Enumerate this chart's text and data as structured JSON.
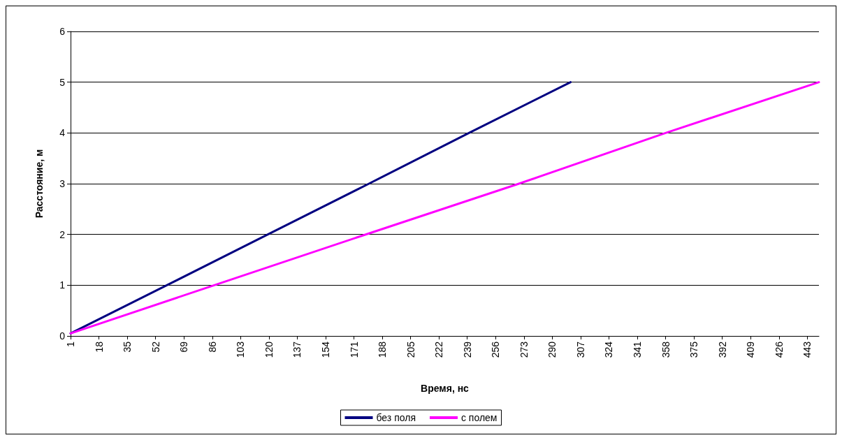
{
  "chart_data": {
    "type": "line",
    "xlabel": "Время, нс",
    "ylabel": "Расстояние, м",
    "xlim": [
      1,
      450
    ],
    "xticks": [
      1,
      18,
      35,
      52,
      69,
      86,
      103,
      120,
      137,
      154,
      171,
      188,
      205,
      222,
      239,
      256,
      273,
      290,
      307,
      324,
      341,
      358,
      375,
      392,
      409,
      426,
      443
    ],
    "ylim": [
      0,
      6
    ],
    "yticks": [
      0,
      1,
      2,
      3,
      4,
      5,
      6
    ],
    "grid": "y",
    "legend": "bottom",
    "marker": "none",
    "line_style": "solid",
    "series": [
      {
        "name": "без поля",
        "color": "#000080",
        "x": [
          1,
          60,
          120,
          180,
          240,
          301
        ],
        "values": [
          0.05,
          1.02,
          2.01,
          3.0,
          4.0,
          5.0
        ]
      },
      {
        "name": "с полем",
        "color": "#ff00ff",
        "x": [
          1,
          90,
          180,
          270,
          358,
          450
        ],
        "values": [
          0.05,
          1.03,
          2.02,
          3.0,
          4.0,
          5.0
        ]
      }
    ]
  }
}
